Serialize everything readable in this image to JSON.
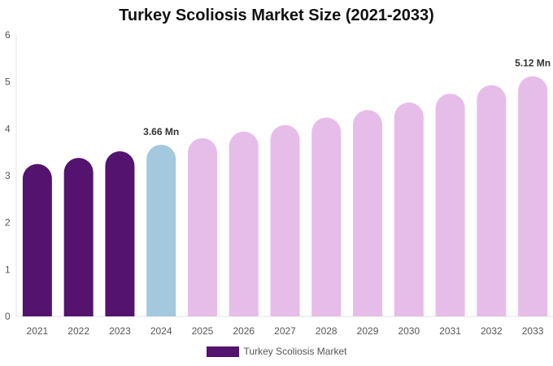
{
  "chart_data": {
    "type": "bar",
    "title": "Turkey Scoliosis Market Size (2021-2033)",
    "xlabel": "",
    "ylabel": "",
    "ylim": [
      0,
      6
    ],
    "yticks": [
      0,
      1,
      2,
      3,
      4,
      5,
      6
    ],
    "grid": false,
    "legend_position": "bottom",
    "categories": [
      "2021",
      "2022",
      "2023",
      "2024",
      "2025",
      "2026",
      "2027",
      "2028",
      "2029",
      "2030",
      "2031",
      "2032",
      "2033"
    ],
    "series": [
      {
        "name": "Turkey Scoliosis Market",
        "values": [
          3.25,
          3.38,
          3.52,
          3.66,
          3.8,
          3.94,
          4.08,
          4.24,
          4.4,
          4.56,
          4.75,
          4.93,
          5.12
        ]
      }
    ],
    "bar_colors": [
      "#53136f",
      "#53136f",
      "#53136f",
      "#a4c9de",
      "#e6bde8",
      "#e6bde8",
      "#e6bde8",
      "#e6bde8",
      "#e6bde8",
      "#e6bde8",
      "#e6bde8",
      "#e6bde8",
      "#e6bde8"
    ],
    "legend_color": "#53136f",
    "annotations": [
      {
        "index": 3,
        "text": "3.66 Mn"
      },
      {
        "index": 12,
        "text": "5.12 Mn"
      }
    ]
  }
}
